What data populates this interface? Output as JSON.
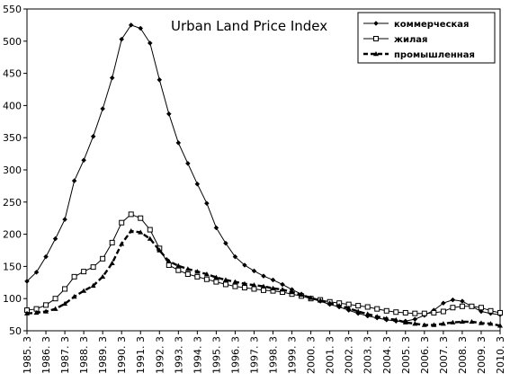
{
  "chart_data": {
    "type": "line",
    "title": "Urban Land Price Index",
    "xlabel": "",
    "ylabel": "",
    "ylim": [
      50,
      550
    ],
    "yticks": [
      50,
      100,
      150,
      200,
      250,
      300,
      350,
      400,
      450,
      500,
      550
    ],
    "categories": [
      "1985. 3",
      "1986. 3",
      "1987. 3",
      "1988. 3",
      "1989. 3",
      "1990. 3",
      "1991. 3",
      "1992. 3",
      "1993. 3",
      "1994. 3",
      "1995. 3",
      "1996. 3",
      "1997. 3",
      "1998. 3",
      "1999. 3",
      "2000. 3",
      "2001. 3",
      "2002. 3",
      "2003. 3",
      "2004. 3",
      "2005. 3",
      "2006. 3",
      "2007. 3",
      "2008. 3",
      "2009. 3",
      "2010. 3"
    ],
    "x": [
      1985.0,
      1985.5,
      1986.0,
      1986.5,
      1987.0,
      1987.5,
      1988.0,
      1988.5,
      1989.0,
      1989.5,
      1990.0,
      1990.5,
      1991.0,
      1991.5,
      1992.0,
      1992.5,
      1993.0,
      1993.5,
      1994.0,
      1994.5,
      1995.0,
      1995.5,
      1996.0,
      1996.5,
      1997.0,
      1997.5,
      1998.0,
      1998.5,
      1999.0,
      1999.5,
      2000.0,
      2000.5,
      2001.0,
      2001.5,
      2002.0,
      2002.5,
      2003.0,
      2003.5,
      2004.0,
      2004.5,
      2005.0,
      2005.5,
      2006.0,
      2006.5,
      2007.0,
      2007.5,
      2008.0,
      2008.5,
      2009.0,
      2009.5,
      2010.0
    ],
    "series": [
      {
        "name": "коммерческая",
        "marker": "filled-diamond",
        "line": "solid",
        "values": [
          127,
          141,
          165,
          193,
          223,
          283,
          315,
          352,
          395,
          443,
          503,
          525,
          520,
          497,
          440,
          387,
          342,
          310,
          278,
          248,
          210,
          186,
          165,
          152,
          143,
          135,
          129,
          122,
          114,
          107,
          100,
          96,
          91,
          87,
          82,
          77,
          73,
          70,
          67,
          65,
          65,
          68,
          74,
          82,
          93,
          98,
          96,
          88,
          80,
          77,
          75
        ]
      },
      {
        "name": "жилая",
        "marker": "open-square",
        "line": "solid",
        "values": [
          82,
          84,
          90,
          100,
          115,
          134,
          142,
          149,
          162,
          187,
          218,
          231,
          225,
          207,
          178,
          152,
          144,
          138,
          134,
          130,
          126,
          122,
          119,
          117,
          115,
          113,
          112,
          110,
          107,
          104,
          100,
          98,
          95,
          93,
          91,
          89,
          87,
          84,
          81,
          79,
          78,
          77,
          77,
          78,
          80,
          86,
          88,
          88,
          86,
          81,
          78
        ]
      },
      {
        "name": "промышленная",
        "marker": "filled-triangle",
        "line": "dashed",
        "values": [
          77,
          78,
          80,
          84,
          92,
          103,
          112,
          120,
          134,
          155,
          185,
          205,
          203,
          193,
          175,
          158,
          151,
          146,
          142,
          138,
          133,
          129,
          126,
          123,
          121,
          119,
          116,
          114,
          110,
          106,
          101,
          97,
          93,
          89,
          85,
          80,
          76,
          72,
          69,
          67,
          63,
          61,
          59,
          59,
          61,
          63,
          64,
          64,
          62,
          61,
          58
        ]
      }
    ],
    "legend": {
      "position": "top-right",
      "entries": [
        "коммерческая",
        "жилая",
        "промышленная"
      ]
    },
    "grid": false,
    "colors": {
      "line": "#000000",
      "background": "#ffffff"
    }
  }
}
